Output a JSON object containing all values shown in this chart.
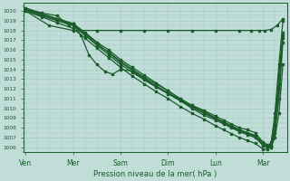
{
  "bg_color": "#c0ddd8",
  "grid_color": "#a8ccc8",
  "line_color": "#1a5c2a",
  "ylabel": "Pression niveau de la mer( hPa )",
  "ylim": [
    1005.5,
    1020.8
  ],
  "yticks": [
    1006,
    1007,
    1008,
    1009,
    1010,
    1011,
    1012,
    1013,
    1014,
    1015,
    1016,
    1017,
    1018,
    1019,
    1020
  ],
  "xtick_labels": [
    "Ven",
    "Mer",
    "Sam",
    "Dim",
    "Lun",
    "Mar"
  ],
  "xtick_positions": [
    0,
    24,
    48,
    72,
    96,
    120
  ],
  "xlim": [
    -1,
    132
  ],
  "lines": [
    {
      "x": [
        0,
        12,
        24,
        36,
        48,
        60,
        72,
        84,
        96,
        108,
        114,
        118,
        121,
        124,
        127,
        130
      ],
      "y": [
        1020.0,
        1018.5,
        1018.0,
        1018.0,
        1018.0,
        1018.0,
        1018.0,
        1018.0,
        1018.0,
        1018.0,
        1018.0,
        1018.0,
        1018.0,
        1018.1,
        1018.5,
        1019.2
      ]
    },
    {
      "x": [
        0,
        8,
        16,
        24,
        30,
        36,
        42,
        48,
        54,
        60,
        66,
        72,
        78,
        84,
        90,
        96,
        100,
        104,
        108,
        112,
        116,
        120,
        122,
        124,
        126,
        128,
        130
      ],
      "y": [
        1020.1,
        1019.5,
        1019.0,
        1018.5,
        1017.5,
        1016.5,
        1015.8,
        1014.8,
        1014.0,
        1013.2,
        1012.5,
        1011.8,
        1011.0,
        1010.3,
        1009.8,
        1009.2,
        1008.8,
        1008.4,
        1008.0,
        1007.8,
        1007.5,
        1006.5,
        1006.2,
        1006.0,
        1007.0,
        1009.5,
        1014.5
      ]
    },
    {
      "x": [
        0,
        8,
        16,
        24,
        30,
        36,
        42,
        48,
        54,
        60,
        66,
        72,
        78,
        84,
        90,
        96,
        100,
        104,
        108,
        112,
        116,
        120,
        122,
        124,
        126,
        128,
        130
      ],
      "y": [
        1020.2,
        1019.7,
        1019.2,
        1018.7,
        1017.8,
        1016.8,
        1016.0,
        1015.0,
        1014.2,
        1013.4,
        1012.6,
        1011.8,
        1011.0,
        1010.3,
        1009.7,
        1009.0,
        1008.6,
        1008.2,
        1007.8,
        1007.5,
        1007.2,
        1006.5,
        1006.3,
        1006.0,
        1007.5,
        1011.0,
        1016.8
      ]
    },
    {
      "x": [
        0,
        8,
        16,
        22,
        24,
        28,
        32,
        36,
        40,
        44,
        48,
        54,
        60,
        66,
        72,
        78,
        84,
        90,
        96,
        100,
        104,
        108,
        112,
        116,
        120,
        122,
        124,
        126,
        128,
        130
      ],
      "y": [
        1020.3,
        1019.8,
        1019.5,
        1018.5,
        1018.7,
        1017.5,
        1015.5,
        1014.5,
        1013.8,
        1013.5,
        1014.0,
        1013.8,
        1013.0,
        1012.2,
        1011.5,
        1010.8,
        1010.0,
        1009.3,
        1008.8,
        1008.4,
        1008.0,
        1007.6,
        1007.3,
        1007.0,
        1006.2,
        1006.0,
        1006.5,
        1009.0,
        1013.5,
        1017.8
      ]
    },
    {
      "x": [
        0,
        8,
        16,
        24,
        30,
        36,
        42,
        48,
        54,
        60,
        66,
        72,
        78,
        84,
        90,
        96,
        100,
        104,
        108,
        112,
        116,
        120,
        122,
        124,
        126,
        128,
        130
      ],
      "y": [
        1020.1,
        1019.6,
        1019.1,
        1018.6,
        1017.6,
        1016.5,
        1015.5,
        1014.5,
        1013.7,
        1012.9,
        1012.2,
        1011.5,
        1010.8,
        1010.1,
        1009.5,
        1008.9,
        1008.5,
        1008.1,
        1007.7,
        1007.4,
        1007.1,
        1006.2,
        1006.0,
        1006.2,
        1007.8,
        1012.0,
        1017.2
      ]
    },
    {
      "x": [
        0,
        8,
        16,
        24,
        30,
        36,
        42,
        48,
        54,
        60,
        66,
        72,
        78,
        84,
        90,
        96,
        100,
        104,
        108,
        112,
        116,
        120,
        122,
        124,
        126,
        128,
        130
      ],
      "y": [
        1020.2,
        1019.7,
        1019.2,
        1018.7,
        1017.7,
        1016.7,
        1015.7,
        1014.7,
        1013.9,
        1013.1,
        1012.3,
        1011.6,
        1010.9,
        1010.2,
        1009.6,
        1009.0,
        1008.6,
        1008.2,
        1007.8,
        1007.5,
        1007.2,
        1006.3,
        1006.1,
        1006.2,
        1008.2,
        1012.5,
        1017.5
      ]
    },
    {
      "x": [
        0,
        8,
        16,
        24,
        30,
        36,
        42,
        48,
        54,
        60,
        66,
        72,
        78,
        84,
        90,
        96,
        100,
        104,
        108,
        112,
        116,
        120,
        122,
        124,
        126,
        128,
        130
      ],
      "y": [
        1020.0,
        1019.4,
        1018.8,
        1018.2,
        1017.2,
        1016.2,
        1015.2,
        1014.2,
        1013.3,
        1012.5,
        1011.7,
        1011.0,
        1010.2,
        1009.5,
        1008.9,
        1008.2,
        1007.8,
        1007.4,
        1007.0,
        1006.7,
        1006.4,
        1005.8,
        1005.8,
        1006.2,
        1009.5,
        1014.5,
        1019.0
      ]
    }
  ]
}
